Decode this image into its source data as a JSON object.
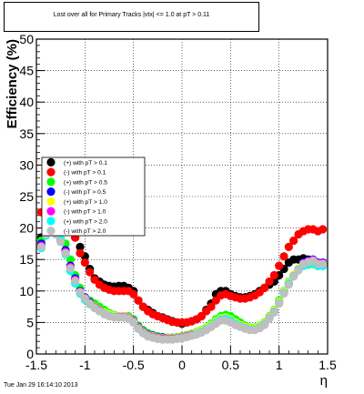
{
  "title": "Lost over all for Primary Tracks |vtx| <= 1.0 at pT > 0.11",
  "footer": "Tue Jan 29 16:14:10 2013",
  "chart_data": {
    "type": "scatter",
    "xlabel": "η",
    "ylabel": "Efficiency (%)",
    "xlim": [
      -1.5,
      1.5
    ],
    "ylim": [
      0,
      50
    ],
    "x_ticks": [
      "-1.5",
      "-1",
      "-0.5",
      "0",
      "0.5",
      "1",
      "1.5"
    ],
    "y_ticks": [
      "0",
      "5",
      "10",
      "15",
      "20",
      "25",
      "30",
      "35",
      "40",
      "45",
      "50"
    ],
    "grid": true,
    "legend_position": "left-middle",
    "series": [
      {
        "name": "(+) with pT > 0.1",
        "color": "#000000",
        "x": [
          -1.45,
          -1.4,
          -1.35,
          -1.3,
          -1.25,
          -1.2,
          -1.15,
          -1.1,
          -1.05,
          -1.0,
          -0.95,
          -0.9,
          -0.85,
          -0.8,
          -0.75,
          -0.7,
          -0.65,
          -0.6,
          -0.55,
          -0.5,
          -0.45,
          -0.4,
          -0.35,
          -0.3,
          -0.25,
          -0.2,
          -0.15,
          -0.1,
          -0.05,
          0.0,
          0.05,
          0.1,
          0.15,
          0.2,
          0.25,
          0.3,
          0.35,
          0.4,
          0.45,
          0.5,
          0.55,
          0.6,
          0.65,
          0.7,
          0.75,
          0.8,
          0.85,
          0.9,
          0.95,
          1.0,
          1.05,
          1.1,
          1.15,
          1.2,
          1.25,
          1.3,
          1.35,
          1.4,
          1.45
        ],
        "y": [
          18.5,
          20.5,
          21.5,
          21.0,
          20.5,
          20.0,
          19.5,
          18.5,
          17.0,
          15.5,
          13.5,
          12.0,
          11.5,
          11.0,
          10.8,
          10.7,
          10.8,
          10.8,
          10.5,
          10.0,
          8.5,
          7.5,
          7.0,
          6.5,
          6.0,
          5.8,
          5.5,
          5.2,
          5.0,
          4.8,
          5.0,
          5.2,
          5.5,
          6.0,
          7.0,
          8.0,
          9.5,
          10.0,
          10.0,
          9.5,
          9.2,
          9.0,
          9.0,
          9.2,
          9.5,
          10.0,
          10.5,
          11.0,
          11.5,
          12.5,
          13.5,
          14.5,
          15.0,
          15.0,
          15.2,
          15.0,
          14.5,
          14.0,
          14.0
        ]
      },
      {
        "name": "(-) with pT > 0.1",
        "color": "#ff0000",
        "x": [
          -1.45,
          -1.4,
          -1.35,
          -1.3,
          -1.25,
          -1.2,
          -1.15,
          -1.1,
          -1.05,
          -1.0,
          -0.95,
          -0.9,
          -0.85,
          -0.8,
          -0.75,
          -0.7,
          -0.65,
          -0.6,
          -0.55,
          -0.5,
          -0.45,
          -0.4,
          -0.35,
          -0.3,
          -0.25,
          -0.2,
          -0.15,
          -0.1,
          -0.05,
          0.0,
          0.05,
          0.1,
          0.15,
          0.2,
          0.25,
          0.3,
          0.35,
          0.4,
          0.45,
          0.5,
          0.55,
          0.6,
          0.65,
          0.7,
          0.75,
          0.8,
          0.85,
          0.9,
          0.95,
          1.0,
          1.05,
          1.1,
          1.15,
          1.2,
          1.25,
          1.3,
          1.35,
          1.4,
          1.45
        ],
        "y": [
          22.5,
          23.5,
          24.5,
          25.0,
          24.5,
          23.5,
          21.0,
          18.5,
          16.0,
          14.5,
          13.0,
          11.8,
          11.0,
          10.5,
          10.2,
          10.0,
          10.0,
          10.0,
          10.0,
          9.5,
          8.5,
          7.5,
          6.8,
          6.3,
          6.0,
          5.7,
          5.4,
          5.1,
          5.0,
          5.0,
          5.0,
          5.2,
          5.5,
          6.0,
          6.8,
          7.5,
          8.5,
          9.3,
          9.5,
          9.2,
          9.0,
          8.8,
          8.8,
          9.0,
          9.3,
          9.8,
          10.5,
          11.5,
          12.5,
          14.0,
          15.5,
          17.0,
          18.0,
          19.0,
          19.5,
          19.8,
          19.8,
          19.5,
          19.8
        ]
      },
      {
        "name": "(+) with pT > 0.5",
        "color": "#00ff00",
        "x": [
          -1.45,
          -1.4,
          -1.35,
          -1.3,
          -1.25,
          -1.2,
          -1.15,
          -1.1,
          -1.05,
          -1.0,
          -0.95,
          -0.9,
          -0.85,
          -0.8,
          -0.75,
          -0.7,
          -0.65,
          -0.6,
          -0.55,
          -0.5,
          -0.45,
          -0.4,
          -0.35,
          -0.3,
          -0.25,
          -0.2,
          -0.15,
          -0.1,
          -0.05,
          0.0,
          0.05,
          0.1,
          0.15,
          0.2,
          0.25,
          0.3,
          0.35,
          0.4,
          0.45,
          0.5,
          0.55,
          0.6,
          0.65,
          0.7,
          0.75,
          0.8,
          0.85,
          0.9,
          0.95,
          1.0,
          1.05,
          1.1,
          1.15,
          1.2,
          1.25,
          1.3,
          1.35,
          1.4,
          1.45
        ],
        "y": [
          18.0,
          21.0,
          22.0,
          21.5,
          20.0,
          17.5,
          15.0,
          12.5,
          10.5,
          9.0,
          8.5,
          8.0,
          7.5,
          7.0,
          6.5,
          6.2,
          6.0,
          6.0,
          6.0,
          5.5,
          4.5,
          3.8,
          3.3,
          3.0,
          2.8,
          2.7,
          2.6,
          2.6,
          2.7,
          2.8,
          3.0,
          3.2,
          3.5,
          3.8,
          4.2,
          4.8,
          5.5,
          6.0,
          6.2,
          6.0,
          5.5,
          5.0,
          4.5,
          4.2,
          4.2,
          4.5,
          5.0,
          6.0,
          7.0,
          8.5,
          10.0,
          11.5,
          12.5,
          13.5,
          14.0,
          14.2,
          14.3,
          14.0,
          14.0
        ]
      },
      {
        "name": "(-) with pT > 0.5",
        "color": "#0000ff",
        "x": [
          -1.45,
          -1.4,
          -1.35,
          -1.3,
          -1.25,
          -1.2,
          -1.15,
          -1.1,
          -1.05,
          -1.0,
          -0.95,
          -0.9,
          -0.85,
          -0.8,
          -0.75,
          -0.7,
          -0.65,
          -0.6,
          -0.55,
          -0.5,
          -0.45,
          -0.4,
          -0.35,
          -0.3,
          -0.25,
          -0.2,
          -0.15,
          -0.1,
          -0.05,
          0.0,
          0.05,
          0.1,
          0.15,
          0.2,
          0.25,
          0.3,
          0.35,
          0.4,
          0.45,
          0.5,
          0.55,
          0.6,
          0.65,
          0.7,
          0.75,
          0.8,
          0.85,
          0.9,
          0.95,
          1.0,
          1.05,
          1.1,
          1.15,
          1.2,
          1.25,
          1.3,
          1.35,
          1.4,
          1.45
        ],
        "y": [
          17.5,
          19.5,
          20.0,
          19.5,
          18.5,
          16.5,
          14.0,
          12.0,
          10.0,
          9.0,
          8.2,
          7.5,
          7.0,
          6.5,
          6.2,
          6.0,
          6.0,
          6.0,
          5.8,
          5.3,
          4.3,
          3.6,
          3.1,
          2.9,
          2.7,
          2.6,
          2.5,
          2.5,
          2.6,
          2.7,
          2.9,
          3.1,
          3.3,
          3.6,
          4.0,
          4.5,
          5.0,
          5.5,
          5.5,
          5.2,
          4.8,
          4.5,
          4.2,
          4.0,
          4.0,
          4.3,
          4.8,
          5.8,
          6.8,
          8.2,
          9.8,
          11.2,
          12.5,
          13.5,
          14.5,
          14.8,
          15.0,
          14.5,
          14.5
        ]
      },
      {
        "name": "(+) with pT > 1.0",
        "color": "#ffff00",
        "x": [
          -1.45,
          -1.4,
          -1.35,
          -1.3,
          -1.25,
          -1.2,
          -1.15,
          -1.1,
          -1.05,
          -1.0,
          -0.95,
          -0.9,
          -0.85,
          -0.8,
          -0.75,
          -0.7,
          -0.65,
          -0.6,
          -0.55,
          -0.5,
          -0.45,
          -0.4,
          -0.35,
          -0.3,
          -0.25,
          -0.2,
          -0.15,
          -0.1,
          -0.05,
          0.0,
          0.05,
          0.1,
          0.15,
          0.2,
          0.25,
          0.3,
          0.35,
          0.4,
          0.45,
          0.5,
          0.55,
          0.6,
          0.65,
          0.7,
          0.75,
          0.8,
          0.85,
          0.9,
          0.95,
          1.0,
          1.05,
          1.1,
          1.15,
          1.2,
          1.25,
          1.3,
          1.35,
          1.4,
          1.45
        ],
        "y": [
          17.0,
          19.0,
          20.5,
          20.0,
          18.5,
          16.0,
          13.5,
          11.5,
          9.8,
          8.8,
          8.0,
          7.5,
          7.0,
          6.6,
          6.3,
          6.1,
          6.0,
          6.0,
          5.8,
          5.2,
          4.2,
          3.5,
          3.0,
          2.8,
          2.6,
          2.5,
          2.5,
          2.5,
          2.6,
          2.7,
          2.9,
          3.1,
          3.4,
          3.7,
          4.1,
          4.6,
          5.2,
          5.7,
          5.8,
          5.5,
          5.0,
          4.6,
          4.3,
          4.1,
          4.1,
          4.4,
          4.9,
          5.9,
          6.9,
          8.3,
          9.9,
          11.4,
          12.6,
          13.6,
          14.2,
          14.5,
          14.6,
          14.2,
          14.2
        ]
      },
      {
        "name": "(-) with pT > 1.0",
        "color": "#ff00ff",
        "x": [
          -1.45,
          -1.4,
          -1.35,
          -1.3,
          -1.25,
          -1.2,
          -1.15,
          -1.1,
          -1.05,
          -1.0,
          -0.95,
          -0.9,
          -0.85,
          -0.8,
          -0.75,
          -0.7,
          -0.65,
          -0.6,
          -0.55,
          -0.5,
          -0.45,
          -0.4,
          -0.35,
          -0.3,
          -0.25,
          -0.2,
          -0.15,
          -0.1,
          -0.05,
          0.0,
          0.05,
          0.1,
          0.15,
          0.2,
          0.25,
          0.3,
          0.35,
          0.4,
          0.45,
          0.5,
          0.55,
          0.6,
          0.65,
          0.7,
          0.75,
          0.8,
          0.85,
          0.9,
          0.95,
          1.0,
          1.05,
          1.1,
          1.15,
          1.2,
          1.25,
          1.3,
          1.35,
          1.4,
          1.45
        ],
        "y": [
          17.2,
          19.2,
          19.8,
          19.2,
          18.0,
          16.2,
          13.8,
          11.8,
          9.9,
          8.9,
          8.1,
          7.4,
          6.9,
          6.4,
          6.1,
          5.9,
          5.9,
          5.9,
          5.7,
          5.1,
          4.1,
          3.4,
          2.9,
          2.7,
          2.5,
          2.4,
          2.4,
          2.4,
          2.5,
          2.6,
          2.8,
          3.0,
          3.2,
          3.5,
          3.9,
          4.4,
          4.9,
          5.4,
          5.4,
          5.1,
          4.7,
          4.4,
          4.1,
          3.9,
          3.9,
          4.2,
          4.7,
          5.7,
          6.7,
          8.1,
          9.7,
          11.1,
          12.4,
          13.4,
          14.4,
          14.7,
          14.9,
          14.4,
          14.4
        ]
      },
      {
        "name": "(+) with pT > 2.0",
        "color": "#00ffff",
        "x": [
          -1.45,
          -1.4,
          -1.35,
          -1.3,
          -1.25,
          -1.2,
          -1.15,
          -1.1,
          -1.05,
          -1.0,
          -0.95,
          -0.9,
          -0.85,
          -0.8,
          -0.75,
          -0.7,
          -0.65,
          -0.6,
          -0.55,
          -0.5,
          -0.45,
          -0.4,
          -0.35,
          -0.3,
          -0.25,
          -0.2,
          -0.15,
          -0.1,
          -0.05,
          0.0,
          0.05,
          0.1,
          0.15,
          0.2,
          0.25,
          0.3,
          0.35,
          0.4,
          0.45,
          0.5,
          0.55,
          0.6,
          0.65,
          0.7,
          0.75,
          0.8,
          0.85,
          0.9,
          0.95,
          1.0,
          1.05,
          1.1,
          1.15,
          1.2,
          1.25,
          1.3,
          1.35,
          1.4,
          1.45
        ],
        "y": [
          16.8,
          18.8,
          20.2,
          19.8,
          18.2,
          15.8,
          13.2,
          11.2,
          9.6,
          8.6,
          7.9,
          7.3,
          6.8,
          6.4,
          6.1,
          5.9,
          5.8,
          5.8,
          5.6,
          5.0,
          4.0,
          3.3,
          2.8,
          2.6,
          2.4,
          2.3,
          2.3,
          2.3,
          2.4,
          2.5,
          2.7,
          2.9,
          3.2,
          3.5,
          3.9,
          4.4,
          5.0,
          5.5,
          5.6,
          5.3,
          4.8,
          4.4,
          4.1,
          3.9,
          3.9,
          4.2,
          4.7,
          5.7,
          6.7,
          8.1,
          9.7,
          11.2,
          12.4,
          13.4,
          14.0,
          14.3,
          14.4,
          14.0,
          14.0
        ]
      },
      {
        "name": "(-) with pT > 2.0",
        "color": "#bfbfbf",
        "x": [
          -1.45,
          -1.4,
          -1.35,
          -1.3,
          -1.25,
          -1.2,
          -1.15,
          -1.1,
          -1.05,
          -1.0,
          -0.95,
          -0.9,
          -0.85,
          -0.8,
          -0.75,
          -0.7,
          -0.65,
          -0.6,
          -0.55,
          -0.5,
          -0.45,
          -0.4,
          -0.35,
          -0.3,
          -0.25,
          -0.2,
          -0.15,
          -0.1,
          -0.05,
          0.0,
          0.05,
          0.1,
          0.15,
          0.2,
          0.25,
          0.3,
          0.35,
          0.4,
          0.45,
          0.5,
          0.55,
          0.6,
          0.65,
          0.7,
          0.75,
          0.8,
          0.85,
          0.9,
          0.95,
          1.0,
          1.05,
          1.1,
          1.15,
          1.2,
          1.25,
          1.3,
          1.35,
          1.4,
          1.45
        ],
        "y": [
          17.0,
          19.0,
          19.6,
          19.0,
          17.8,
          16.0,
          13.6,
          11.6,
          9.8,
          8.8,
          8.0,
          7.3,
          6.8,
          6.3,
          6.0,
          5.8,
          5.8,
          5.8,
          5.6,
          5.0,
          4.0,
          3.3,
          2.8,
          2.6,
          2.4,
          2.3,
          2.3,
          2.3,
          2.4,
          2.5,
          2.7,
          2.9,
          3.1,
          3.4,
          3.8,
          4.3,
          4.8,
          5.3,
          5.3,
          5.0,
          4.6,
          4.3,
          4.0,
          3.8,
          3.8,
          4.1,
          4.6,
          5.6,
          6.6,
          8.0,
          9.6,
          11.0,
          12.3,
          13.3,
          14.3,
          14.6,
          14.8,
          14.3,
          14.3
        ]
      }
    ]
  }
}
